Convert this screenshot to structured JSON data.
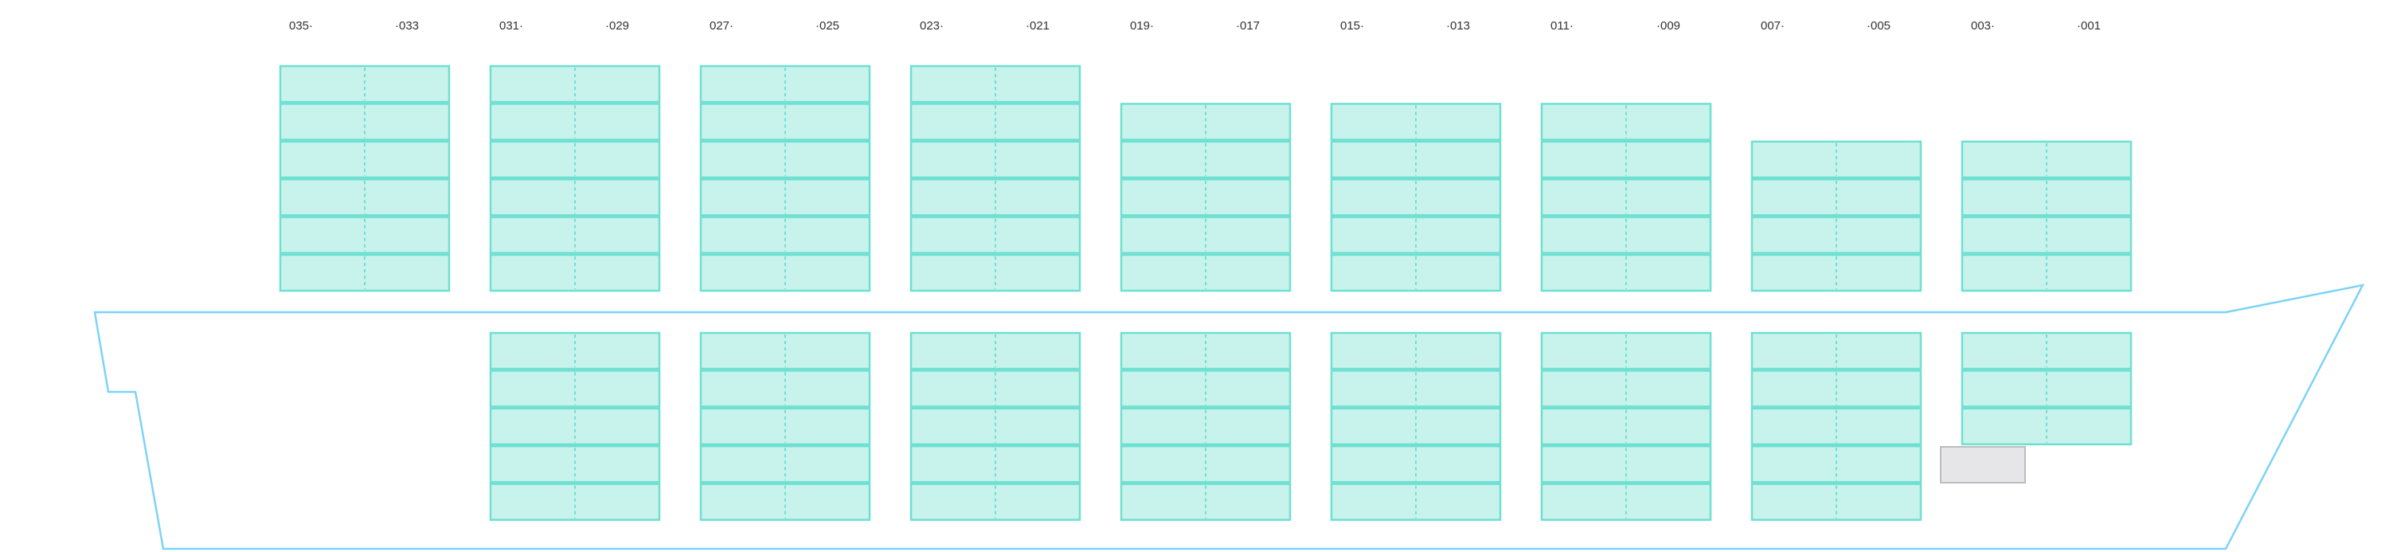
{
  "colors": {
    "slot_fill": "#c8f3ed",
    "slot_border": "#6ee0d0",
    "hull": "#7dd3f7",
    "block_fill": "#e6e6e8"
  },
  "bays": [
    {
      "left_label": "035·",
      "right_label": "·033",
      "above_deck_tiers": 6,
      "below_deck_tiers": 0
    },
    {
      "left_label": "031·",
      "right_label": "·029",
      "above_deck_tiers": 6,
      "below_deck_tiers": 5
    },
    {
      "left_label": "027·",
      "right_label": "·025",
      "above_deck_tiers": 6,
      "below_deck_tiers": 5
    },
    {
      "left_label": "023·",
      "right_label": "·021",
      "above_deck_tiers": 6,
      "below_deck_tiers": 5
    },
    {
      "left_label": "019·",
      "right_label": "·017",
      "above_deck_tiers": 5,
      "below_deck_tiers": 5
    },
    {
      "left_label": "015·",
      "right_label": "·013",
      "above_deck_tiers": 5,
      "below_deck_tiers": 5
    },
    {
      "left_label": "011·",
      "right_label": "·009",
      "above_deck_tiers": 5,
      "below_deck_tiers": 5
    },
    {
      "left_label": "007·",
      "right_label": "·005",
      "above_deck_tiers": 4,
      "below_deck_tiers": 5
    },
    {
      "left_label": "003·",
      "right_label": "·001",
      "above_deck_tiers": 4,
      "below_deck_tiers": 3
    }
  ]
}
